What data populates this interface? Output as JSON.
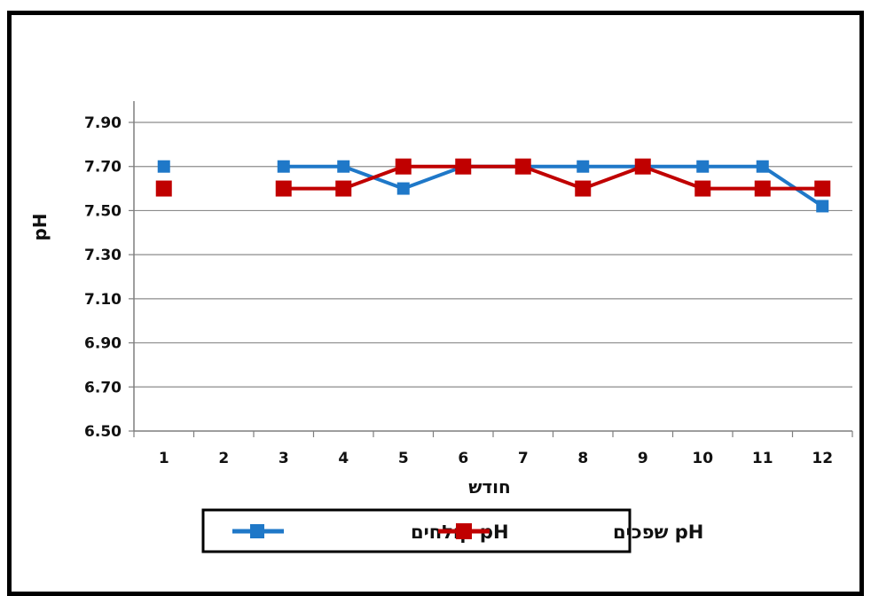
{
  "chart_data": {
    "type": "line",
    "title": "",
    "xlabel": "חודש",
    "ylabel": "pH",
    "categories": [
      "1",
      "2",
      "3",
      "4",
      "5",
      "6",
      "7",
      "8",
      "9",
      "10",
      "11",
      "12"
    ],
    "ylim": [
      6.5,
      7.9
    ],
    "yticks": [
      "6.50",
      "6.70",
      "6.90",
      "7.10",
      "7.30",
      "7.50",
      "7.70",
      "7.90"
    ],
    "grid": true,
    "legend_position": "bottom",
    "series": [
      {
        "name": "pH קולחים",
        "color": "#1f78c8",
        "values": [
          7.7,
          null,
          7.7,
          7.7,
          7.6,
          7.7,
          7.7,
          7.7,
          7.7,
          7.7,
          7.7,
          7.52
        ]
      },
      {
        "name": "pH שפכים",
        "color": "#c00000",
        "values": [
          7.6,
          null,
          7.6,
          7.6,
          7.7,
          7.7,
          7.7,
          7.6,
          7.7,
          7.6,
          7.6,
          7.6
        ]
      }
    ]
  }
}
